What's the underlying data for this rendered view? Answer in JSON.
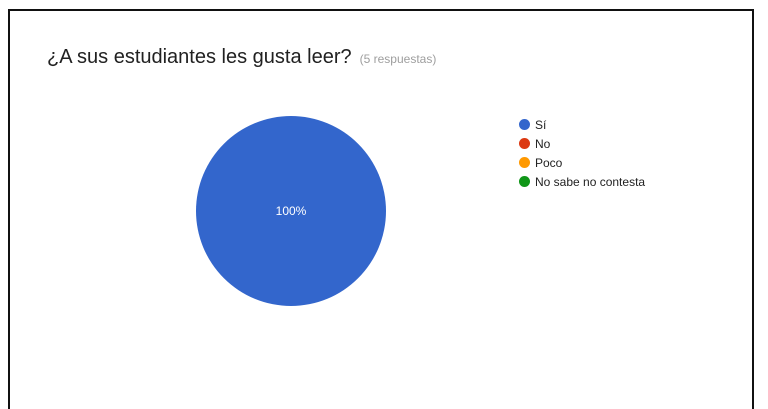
{
  "question": {
    "title": "¿A sus estudiantes les gusta leer?",
    "response_count": "(5 respuestas)"
  },
  "chart_data": {
    "type": "pie",
    "categories": [
      "Sí",
      "No",
      "Poco",
      "No sabe no contesta"
    ],
    "values": [
      100,
      0,
      0,
      0
    ],
    "colors": [
      "#3366cc",
      "#dc3912",
      "#ff9900",
      "#109618"
    ],
    "slice_labels": [
      "100%"
    ],
    "legend_position": "right"
  }
}
